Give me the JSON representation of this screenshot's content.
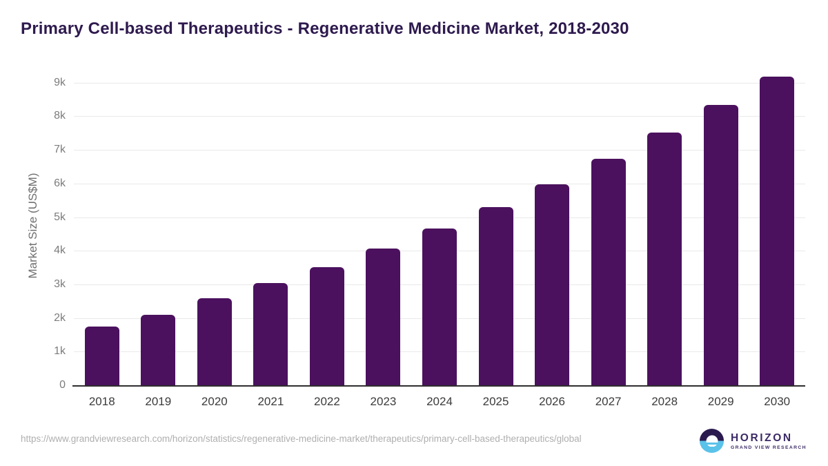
{
  "title": "Primary Cell-based Therapeutics - Regenerative Medicine Market, 2018-2030",
  "colors": {
    "bar": "#4B115E",
    "title_color": "#2E1A4E",
    "grid": "#E9E9E9",
    "axis": "#2E2E2E",
    "ytick": "#7C7C7C",
    "xtick": "#3B3B3B",
    "ylabel": "#6F6F6F",
    "footer_text": "#AFAFAF",
    "logo_purple": "#2B1A4E",
    "logo_blue": "#5BC2E9",
    "logo_text": "#3B2A66"
  },
  "chart_data": {
    "type": "bar",
    "title": "Primary Cell-based Therapeutics - Regenerative Medicine Market, 2018-2030",
    "categories": [
      "2018",
      "2019",
      "2020",
      "2021",
      "2022",
      "2023",
      "2024",
      "2025",
      "2026",
      "2027",
      "2028",
      "2029",
      "2030"
    ],
    "values": [
      1740,
      2090,
      2590,
      3040,
      3520,
      4070,
      4660,
      5300,
      5980,
      6740,
      7510,
      8330,
      9180
    ],
    "xlabel": "",
    "ylabel": "Market Size (US$M)",
    "ylim": [
      0,
      9610
    ],
    "ytick_step": 1000,
    "ytick_labels": [
      "0",
      "1k",
      "2k",
      "3k",
      "4k",
      "5k",
      "6k",
      "7k",
      "8k",
      "9k"
    ],
    "grid": true,
    "legend": false,
    "bar_color": "#4B115E"
  },
  "footer": {
    "source_url": "https://www.grandviewresearch.com/horizon/statistics/regenerative-medicine-market/therapeutics/primary-cell-based-therapeutics/global"
  },
  "logo": {
    "name": "HORIZON",
    "subtitle": "GRAND VIEW RESEARCH"
  }
}
